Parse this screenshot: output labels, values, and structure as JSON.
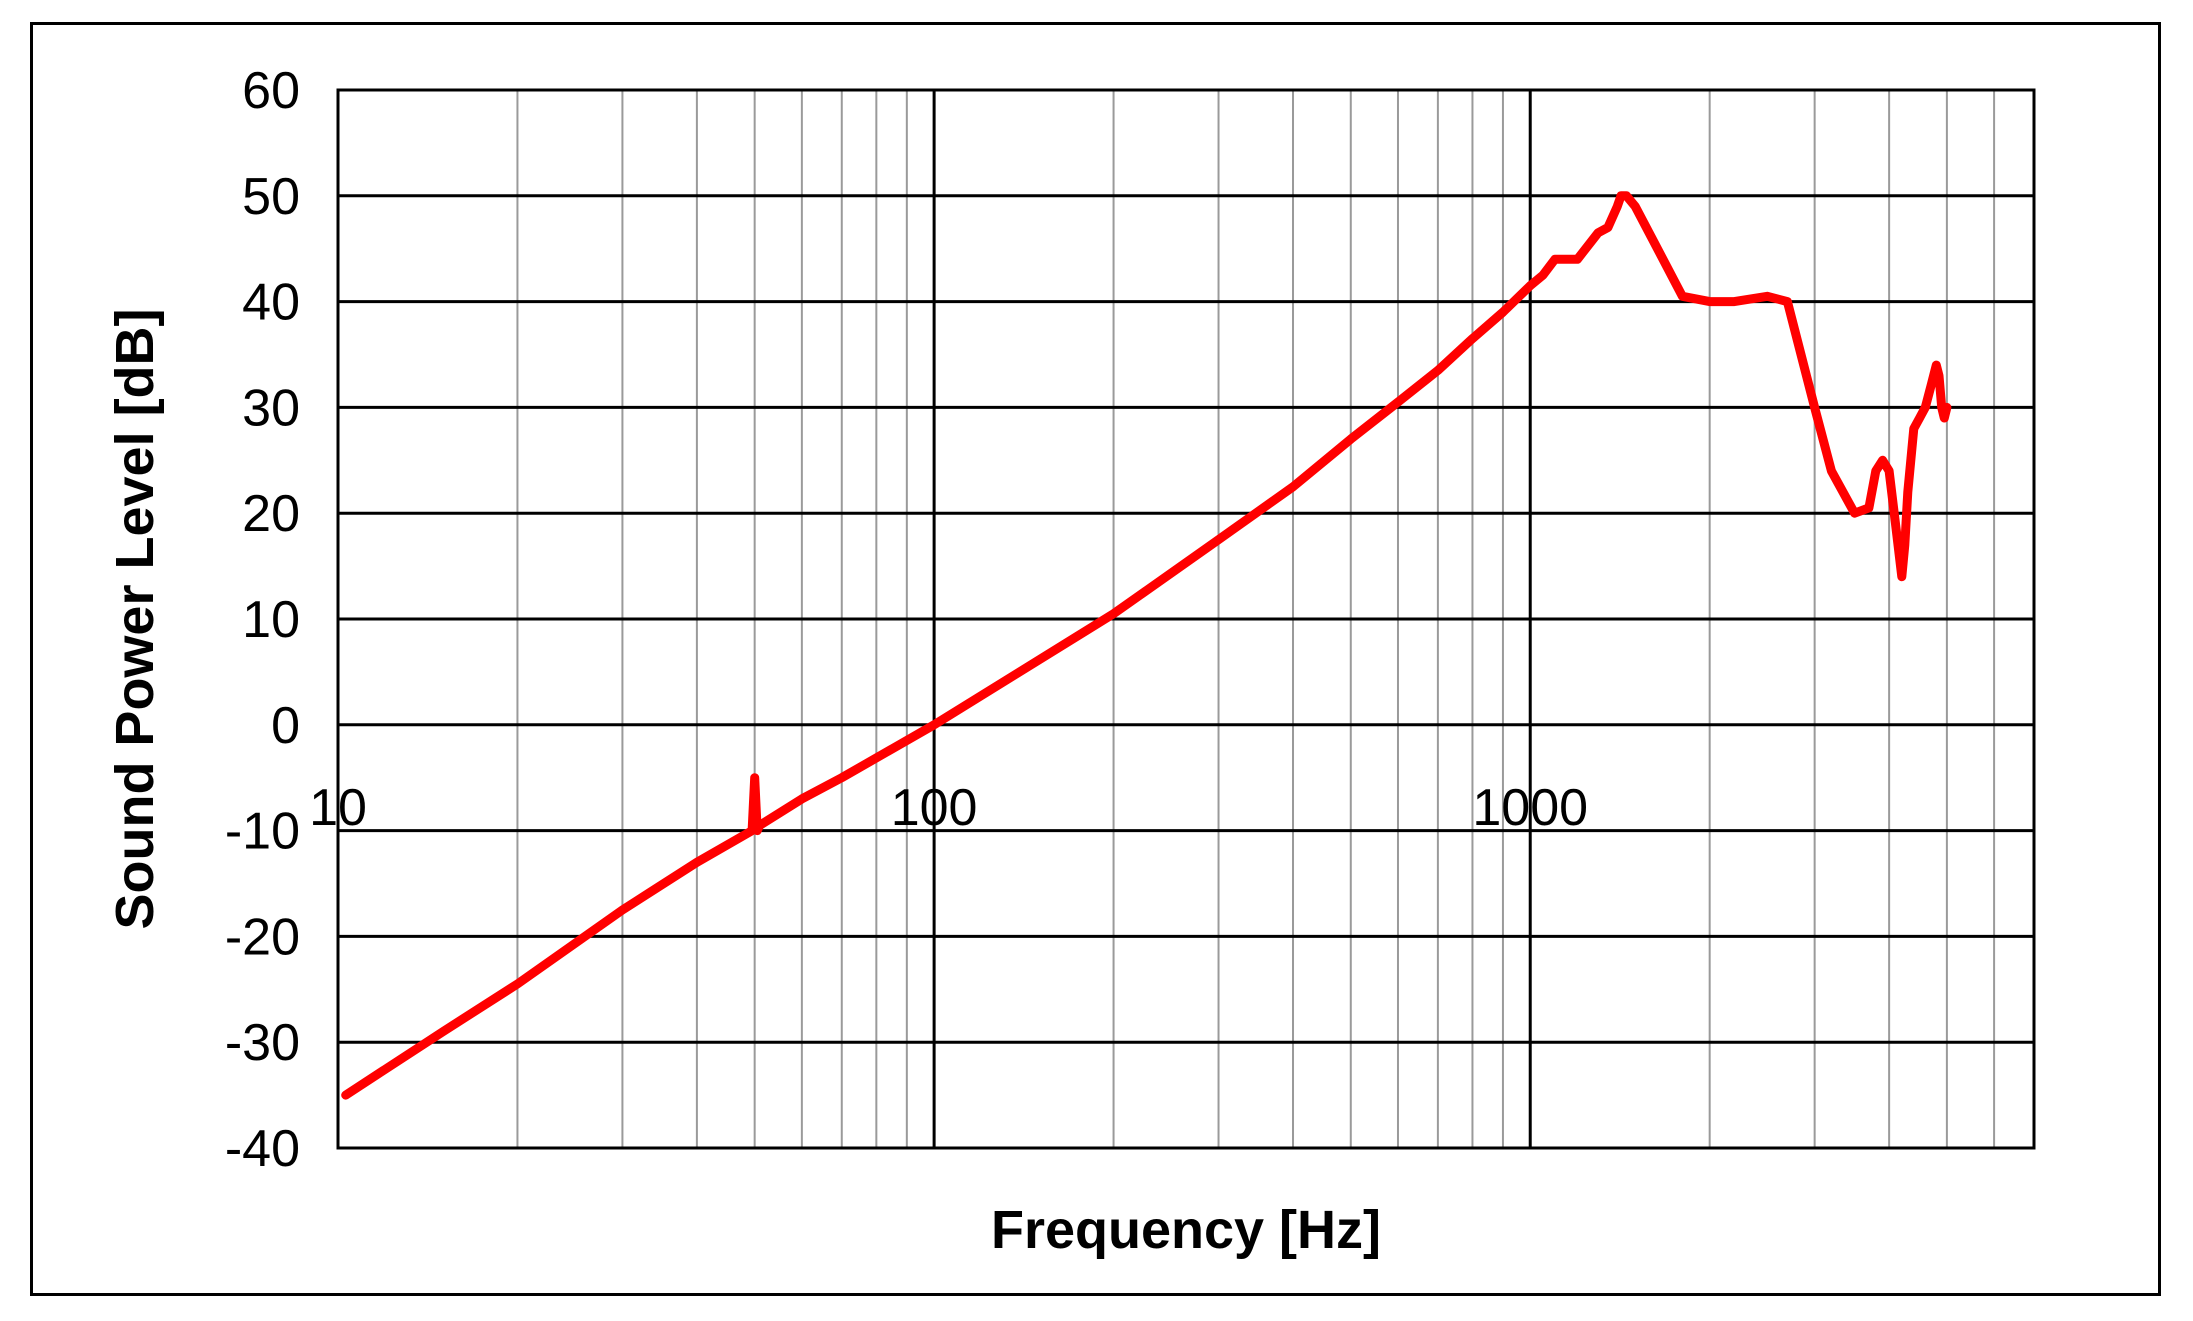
{
  "chart_data": {
    "type": "line",
    "xlabel": "Frequency [Hz]",
    "ylabel": "Sound Power Level [dB]",
    "xscale": "log",
    "xlim": [
      10,
      7000
    ],
    "ylim": [
      -40,
      60
    ],
    "x_tick_values": [
      10,
      100,
      1000
    ],
    "x_tick_labels": [
      "10",
      "100",
      "1000"
    ],
    "y_tick_values": [
      60,
      50,
      40,
      30,
      20,
      10,
      0,
      -10,
      -20,
      -30,
      -40
    ],
    "y_tick_labels": [
      "60",
      "50",
      "40",
      "30",
      "20",
      "10",
      "0",
      "-10",
      "-20",
      "-30",
      "-40"
    ],
    "grid": true,
    "series_color": "#ff0000",
    "series": [
      {
        "x": [
          10.3,
          15,
          20,
          30,
          40,
          49.5,
          50,
          50.5,
          51,
          60,
          70,
          100,
          200,
          300,
          400,
          500,
          600,
          700,
          800,
          900,
          1000,
          1050,
          1100,
          1200,
          1300,
          1350,
          1400,
          1420,
          1450,
          1500,
          1600,
          1800,
          2000,
          2200,
          2500,
          2700,
          3000,
          3200,
          3500,
          3700,
          3800,
          3900,
          4000,
          4100,
          4200,
          4250,
          4300,
          4400,
          4500,
          4600,
          4700,
          4800,
          4850,
          4900,
          4950,
          5000
        ],
        "y": [
          -35,
          -29,
          -24.5,
          -17.5,
          -13,
          -10,
          -5,
          -10,
          -9.5,
          -7,
          -5,
          0,
          10.5,
          17.5,
          22.5,
          27,
          30.5,
          33.5,
          36.5,
          39,
          41.5,
          42.5,
          44,
          44,
          46.5,
          47,
          49,
          50,
          50,
          49,
          46,
          40.5,
          40,
          40,
          40.5,
          40,
          30,
          24,
          20,
          20.5,
          24,
          25,
          24,
          19,
          14,
          17,
          22,
          28,
          29,
          30,
          32,
          34,
          33,
          30,
          29,
          30
        ]
      }
    ]
  }
}
